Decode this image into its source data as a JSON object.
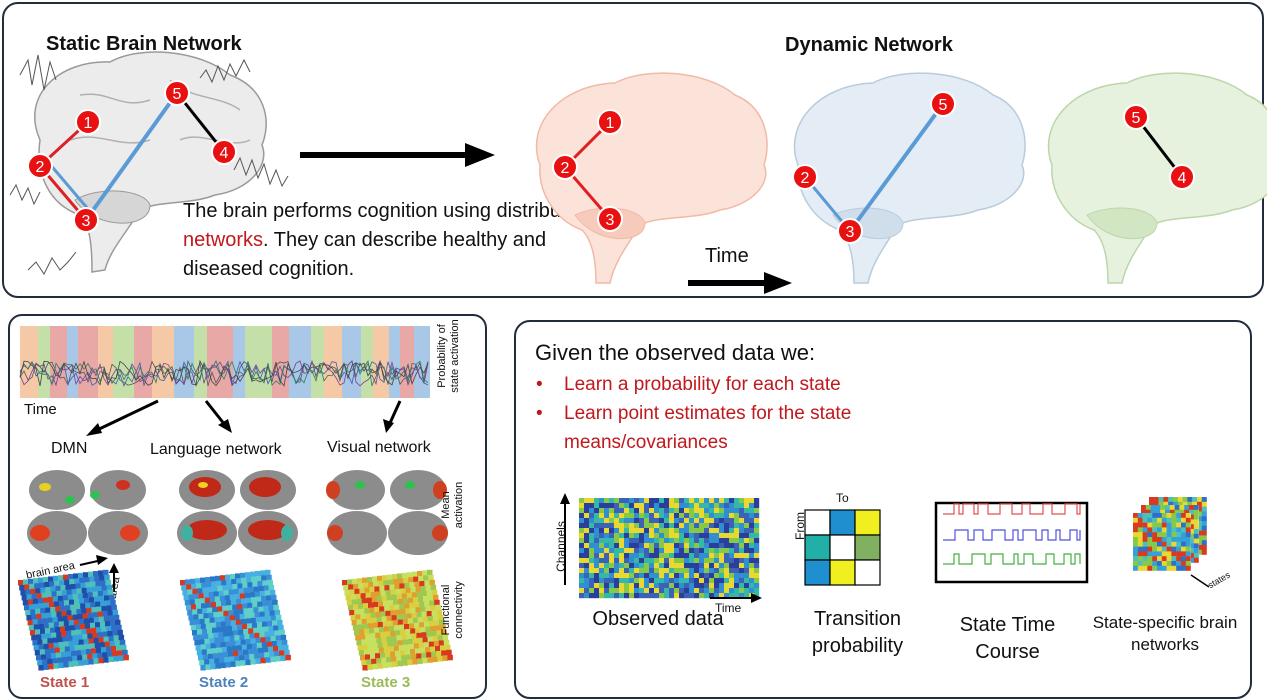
{
  "top": {
    "static_title": "Static Brain Network",
    "dynamic_title": "Dynamic Network",
    "description": {
      "pre": "The brain performs cognition using distributed ",
      "highlight": "networks",
      "post": ". They can describe healthy and diseased cognition."
    },
    "time_label": "Time",
    "nodes": [
      "1",
      "2",
      "3",
      "4",
      "5"
    ]
  },
  "left_panel": {
    "time_label": "Time",
    "prob_label": "Probability of state activation",
    "networks": [
      "DMN",
      "Language network",
      "Visual network"
    ],
    "mean_label": "Mean activation",
    "fc_label": "Functional connectivity",
    "brain_area_x": "brain area",
    "brain_area_y": "brain area",
    "states": [
      "State 1",
      "State 2",
      "State 3"
    ],
    "state_colors": [
      "#c0504d",
      "#4f81bd",
      "#9bbb59"
    ]
  },
  "right_panel": {
    "heading": "Given the observed data we:",
    "bullets": [
      "Learn a probability for each state",
      "Learn point estimates for the state means/covariances"
    ],
    "channels_label": "Channels",
    "time_label": "Time",
    "to_label": "To",
    "from_label": "From",
    "states_label": "states",
    "captions": [
      "Observed data",
      "Transition probability",
      "State Time Course",
      "State-specific brain networks"
    ]
  }
}
